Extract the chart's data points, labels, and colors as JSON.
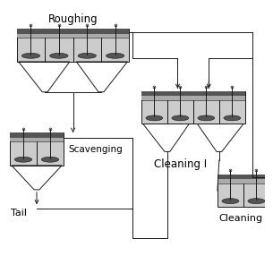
{
  "bg_color": "#ffffff",
  "lc": "#1a1a1a",
  "dark_gray": "#555555",
  "med_gray": "#999999",
  "light_gray": "#cccccc",
  "froth_dark": "#666666",
  "froth_light": "#aaaaaa",
  "water_color": "#bbbbbb",
  "label_roughing": "Roughing",
  "label_scavenging": "Scavenging",
  "label_tail": "Tail",
  "label_cleaning1": "Cleaning I",
  "label_cleaning2": "Cleaning"
}
